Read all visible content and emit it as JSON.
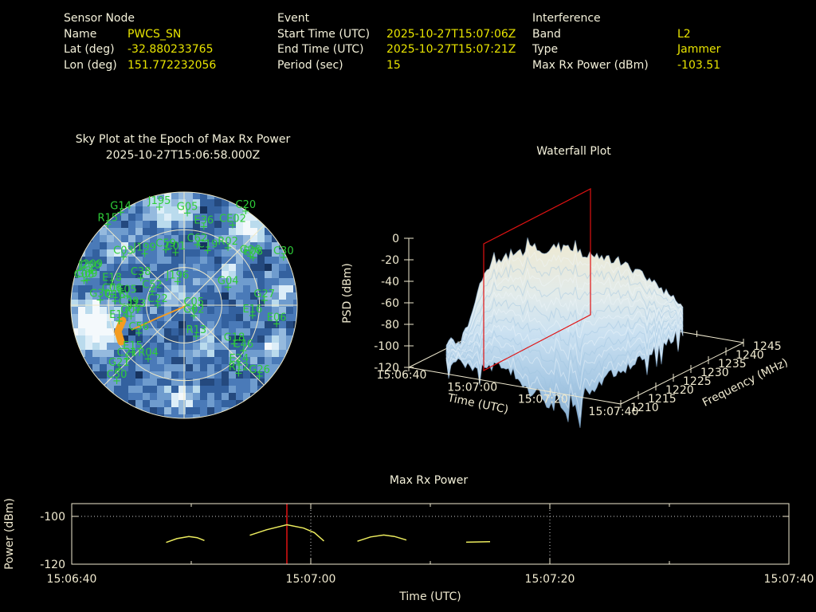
{
  "header": {
    "sensor_node": {
      "title": "Sensor Node",
      "rows": [
        {
          "label": "Name",
          "value": "PWCS_SN"
        },
        {
          "label": "Lat (deg)",
          "value": "-32.880233765"
        },
        {
          "label": "Lon (deg)",
          "value": "151.772232056"
        }
      ]
    },
    "event": {
      "title": "Event",
      "rows": [
        {
          "label": "Start Time (UTC)",
          "value": "2025-10-27T15:07:06Z"
        },
        {
          "label": "End Time (UTC)",
          "value": "2025-10-27T15:07:21Z"
        },
        {
          "label": "Period (sec)",
          "value": "15"
        }
      ]
    },
    "interference": {
      "title": "Interference",
      "rows": [
        {
          "label": "Band",
          "value": "L2"
        },
        {
          "label": "Type",
          "value": "Jammer"
        },
        {
          "label": "Max Rx Power (dBm)",
          "value": "-103.51"
        }
      ]
    }
  },
  "colors": {
    "background": "#000000",
    "label_text": "#f4f1da",
    "value_text": "#e8e400",
    "axis": "#f0ead0",
    "grid_dotted": "#cfcfcf",
    "satellite_green": "#2ecc38",
    "epoch_red": "#e01212",
    "series_yellow": "#ecec5e",
    "jammer_orange": "#f49c20"
  },
  "chart_data": [
    {
      "type": "polar-heatmap",
      "title": "Sky Plot at the Epoch of Max Rx Power",
      "epoch": "2025-10-27T15:06:58.000Z",
      "elevation_rings": [
        0,
        30,
        60
      ],
      "azimuth_spokes_deg": 45,
      "palette": [
        "#16335f",
        "#24497e",
        "#33619f",
        "#4a7ab8",
        "#6f9cce",
        "#95bade",
        "#badbed",
        "#ddeef8",
        "#f4f9fc"
      ],
      "jammer_track": {
        "color": "#f49c20",
        "trail": [
          [
            166,
            166
          ],
          [
            131,
            181
          ],
          [
            98,
            196
          ]
        ],
        "blob": [
          [
            87,
            184
          ],
          [
            81,
            198
          ],
          [
            85,
            211
          ]
        ]
      },
      "satellites": [
        {
          "id": "G14",
          "az": 326,
          "el": 0
        },
        {
          "id": "J195",
          "az": 346,
          "el": 9
        },
        {
          "id": "G05",
          "az": 2,
          "el": 16
        },
        {
          "id": "C20",
          "az": 33,
          "el": 0
        },
        {
          "id": "R15",
          "az": 317,
          "el": 1
        },
        {
          "id": "E36",
          "az": 14,
          "el": 25
        },
        {
          "id": "CE02",
          "az": 31,
          "el": 15
        },
        {
          "id": "C62",
          "az": 12,
          "el": 40
        },
        {
          "id": "C19",
          "az": 23,
          "el": 42
        },
        {
          "id": "R02",
          "az": 37,
          "el": 32
        },
        {
          "id": "C59",
          "az": 342,
          "el": 43
        },
        {
          "id": "C01",
          "az": 351,
          "el": 47
        },
        {
          "id": "C03",
          "az": 309,
          "el": 28
        },
        {
          "id": "J199",
          "az": 323,
          "el": 38
        },
        {
          "id": "G06",
          "az": 53,
          "el": 24
        },
        {
          "id": "E08",
          "az": 55,
          "el": 23
        },
        {
          "id": "C30",
          "az": 64,
          "el": 2
        },
        {
          "id": "J209",
          "az": 291,
          "el": 11
        },
        {
          "id": "J200",
          "az": 290,
          "el": 10
        },
        {
          "id": "G09",
          "az": 285,
          "el": 10
        },
        {
          "id": "C08",
          "az": 284,
          "el": 8
        },
        {
          "id": "E18",
          "az": 287,
          "el": 30
        },
        {
          "id": "C38",
          "az": 303,
          "el": 49
        },
        {
          "id": "C52",
          "az": 295,
          "el": 62
        },
        {
          "id": "C22",
          "az": 272,
          "el": 69
        },
        {
          "id": "J196",
          "az": 345,
          "el": 70
        },
        {
          "id": "G04",
          "az": 67,
          "el": 52
        },
        {
          "id": "C06",
          "az": 279,
          "el": 32
        },
        {
          "id": "E05",
          "az": 280,
          "el": 44
        },
        {
          "id": "G30",
          "az": 274,
          "el": 23
        },
        {
          "id": "C16",
          "az": 274,
          "el": 35
        },
        {
          "id": "G27",
          "az": 86,
          "el": 26
        },
        {
          "id": "C39",
          "az": 268,
          "el": 46
        },
        {
          "id": "J13",
          "az": 265,
          "el": 53
        },
        {
          "id": "G07",
          "az": 259,
          "el": 47
        },
        {
          "id": "E14",
          "az": 257,
          "el": 37
        },
        {
          "id": "C56",
          "az": 239,
          "el": 48
        },
        {
          "id": "C05",
          "az": 104,
          "el": 82
        },
        {
          "id": "G02",
          "az": 135,
          "el": 79
        },
        {
          "id": "R13",
          "az": 158,
          "el": 64
        },
        {
          "id": "E16",
          "az": 98,
          "el": 35
        },
        {
          "id": "E06",
          "az": 101,
          "el": 15
        },
        {
          "id": "G18",
          "az": 127,
          "el": 40
        },
        {
          "id": "C46",
          "az": 127,
          "el": 31
        },
        {
          "id": "E15",
          "az": 228,
          "el": 35
        },
        {
          "id": "C21",
          "az": 227,
          "el": 28
        },
        {
          "id": "R04",
          "az": 214,
          "el": 39
        },
        {
          "id": "G21",
          "az": 226,
          "el": 18
        },
        {
          "id": "C50",
          "az": 222,
          "el": 10
        },
        {
          "id": "E24",
          "az": 137,
          "el": 26
        },
        {
          "id": "R12",
          "az": 141,
          "el": 21
        },
        {
          "id": "G26",
          "az": 133,
          "el": 8
        }
      ]
    },
    {
      "type": "surface",
      "title": "Waterfall Plot",
      "z_label": "PSD (dBm)",
      "z_ticks": [
        0,
        -20,
        -40,
        -60,
        -80,
        -100,
        -120
      ],
      "psd_range": [
        -120,
        0
      ],
      "time_label": "Time (UTC)",
      "time_ticks": [
        "15:06:40",
        "15:07:00",
        "15:07:20",
        "15:07:40"
      ],
      "freq_label": "Frequency (MHz)",
      "freq_ticks": [
        1210,
        1215,
        1220,
        1225,
        1230,
        1235,
        1240,
        1245
      ],
      "freq_range_mhz": [
        1210,
        1245
      ],
      "slice_time_utc": "15:06:58",
      "slice_color": "#e01212"
    },
    {
      "type": "line",
      "title": "Max Rx Power",
      "ylabel": "Power (dBm)",
      "xlabel": "Time (UTC)",
      "x_ticks": [
        "15:06:40",
        "15:07:00",
        "15:07:20",
        "15:07:40"
      ],
      "x_tick_t": [
        0,
        20,
        40,
        60
      ],
      "x_minor_t": [
        10,
        30,
        50
      ],
      "y_ticks": [
        -100,
        -120
      ],
      "ylim": [
        -120,
        -94.7
      ],
      "grid_t": [
        20,
        40
      ],
      "grid_dbm": [
        -100
      ],
      "epoch_marker_t": 18,
      "max_rx_power_dbm": -103.51,
      "series_segments": [
        [
          {
            "t": 7.9,
            "dbm": -110.9
          },
          {
            "t": 8.8,
            "dbm": -109.3
          },
          {
            "t": 9.8,
            "dbm": -108.4
          },
          {
            "t": 10.5,
            "dbm": -108.9
          },
          {
            "t": 11.1,
            "dbm": -110.1
          }
        ],
        [
          {
            "t": 14.9,
            "dbm": -107.9
          },
          {
            "t": 16.3,
            "dbm": -105.6
          },
          {
            "t": 18,
            "dbm": -103.5
          },
          {
            "t": 19.4,
            "dbm": -104.9
          },
          {
            "t": 20.3,
            "dbm": -106.8
          },
          {
            "t": 21.1,
            "dbm": -110.3
          }
        ],
        [
          {
            "t": 23.9,
            "dbm": -110.4
          },
          {
            "t": 25,
            "dbm": -108.6
          },
          {
            "t": 26.1,
            "dbm": -107.8
          },
          {
            "t": 27,
            "dbm": -108.4
          },
          {
            "t": 28,
            "dbm": -109.9
          }
        ],
        [
          {
            "t": 33,
            "dbm": -110.8
          },
          {
            "t": 35,
            "dbm": -110.6
          }
        ]
      ]
    }
  ]
}
